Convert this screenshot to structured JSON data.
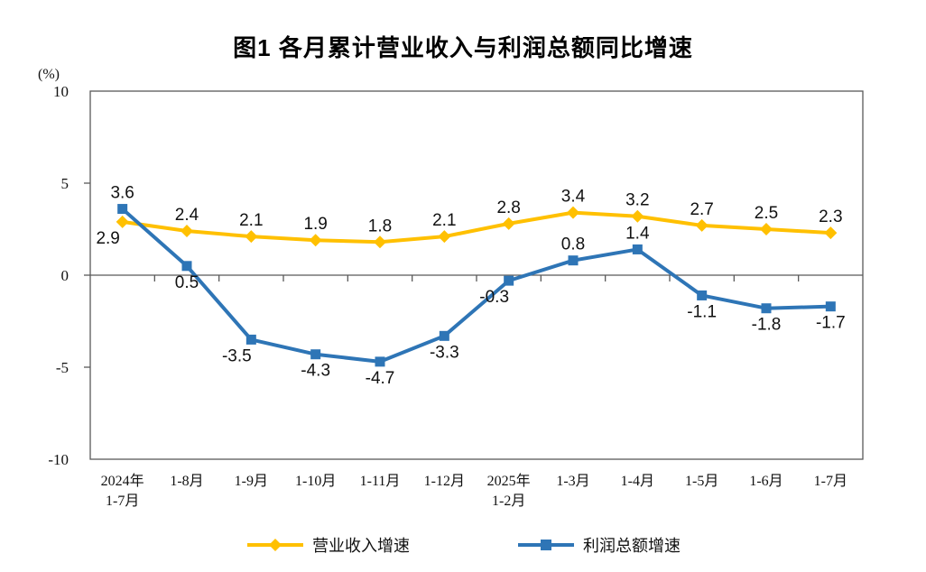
{
  "chart_data": {
    "type": "line",
    "title": "图1 各月累计营业收入与利润总额同比增速",
    "ylabel": "(%)",
    "xlabel": "",
    "ylim": [
      -10,
      10
    ],
    "yticks": [
      10,
      5,
      0,
      -5,
      -10
    ],
    "grid": false,
    "legend_position": "bottom",
    "axis_color": "#595959",
    "label_color": "#111111",
    "categories": [
      [
        "2024年",
        "1-7月"
      ],
      [
        "1-8月"
      ],
      [
        "1-9月"
      ],
      [
        "1-10月"
      ],
      [
        "1-11月"
      ],
      [
        "1-12月"
      ],
      [
        "2025年",
        "1-2月"
      ],
      [
        "1-3月"
      ],
      [
        "1-4月"
      ],
      [
        "1-5月"
      ],
      [
        "1-6月"
      ],
      [
        "1-7月"
      ]
    ],
    "series": [
      {
        "name": "营业收入增速",
        "color": "#FFC000",
        "marker": "diamond",
        "values": [
          2.9,
          2.4,
          2.1,
          1.9,
          1.8,
          2.1,
          2.8,
          3.4,
          3.2,
          2.7,
          2.5,
          2.3
        ],
        "label_pos": [
          "below-left",
          "above",
          "above",
          "above",
          "above",
          "above",
          "above",
          "above",
          "above",
          "above",
          "above",
          "above"
        ]
      },
      {
        "name": "利润总额增速",
        "color": "#2E75B6",
        "marker": "square",
        "values": [
          3.6,
          0.5,
          -3.5,
          -4.3,
          -4.7,
          -3.3,
          -0.3,
          0.8,
          1.4,
          -1.1,
          -1.8,
          -1.7
        ],
        "label_pos": [
          "above",
          "below",
          "below-left",
          "below",
          "below",
          "below",
          "below-left",
          "above",
          "above",
          "below",
          "below",
          "below"
        ]
      }
    ]
  }
}
